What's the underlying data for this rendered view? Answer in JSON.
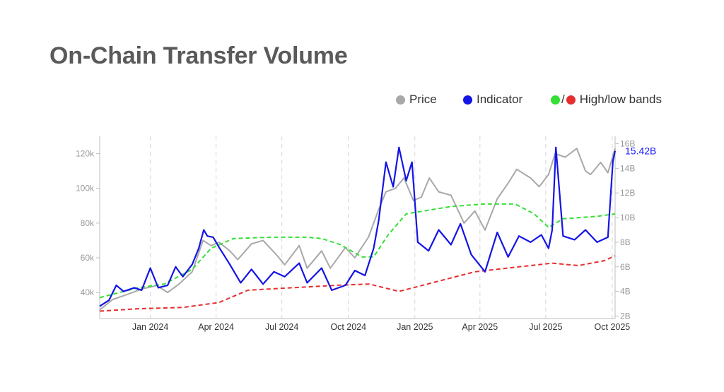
{
  "page": {
    "title": "On-Chain Transfer Volume"
  },
  "legend": {
    "price_label": "Price",
    "indicator_label": "Indicator",
    "bands_label": "High/low bands",
    "bands_slash": "/"
  },
  "colors": {
    "price": "#a8a8a8",
    "indicator": "#1414e6",
    "high_band": "#33e033",
    "low_band": "#e62e2e",
    "grid": "#d6d6d6",
    "axis": "#bdbdbd"
  },
  "chart_data": {
    "type": "line",
    "title": "On-Chain Transfer Volume",
    "x_range": [
      "2023-10-23",
      "2025-10-05"
    ],
    "x_ticks": [
      {
        "date": "2024-01-01",
        "label": "Jan 2024"
      },
      {
        "date": "2024-04-01",
        "label": "Apr 2024"
      },
      {
        "date": "2024-07-01",
        "label": "Jul 2024"
      },
      {
        "date": "2024-10-01",
        "label": "Oct 2024"
      },
      {
        "date": "2025-01-01",
        "label": "Jan 2025"
      },
      {
        "date": "2025-04-01",
        "label": "Apr 2025"
      },
      {
        "date": "2025-07-01",
        "label": "Jul 2025"
      },
      {
        "date": "2025-10-01",
        "label": "Oct 2025"
      }
    ],
    "y_left": {
      "range": [
        25000,
        130000
      ],
      "ticks": [
        40000,
        60000,
        80000,
        100000,
        120000
      ],
      "tick_labels": [
        "40k",
        "60k",
        "80k",
        "100k",
        "120k"
      ]
    },
    "y_right": {
      "range": [
        1.8,
        16.6
      ],
      "ticks": [
        2,
        4,
        6,
        8,
        10,
        12,
        14,
        16
      ],
      "tick_labels": [
        "2B",
        "4B",
        "6B",
        "8B",
        "10B",
        "12B",
        "14B",
        "16B"
      ]
    },
    "grid": "vertical dashed at x ticks",
    "legend_position": "top-right",
    "last_value_label": "15.42B",
    "series": [
      {
        "name": "Price",
        "axis": "left",
        "points": [
          [
            "2023-10-23",
            30000
          ],
          [
            "2023-11-10",
            36000
          ],
          [
            "2023-12-01",
            39000
          ],
          [
            "2023-12-20",
            42000
          ],
          [
            "2024-01-10",
            44000
          ],
          [
            "2024-01-25",
            40000
          ],
          [
            "2024-02-10",
            45000
          ],
          [
            "2024-02-28",
            52000
          ],
          [
            "2024-03-14",
            70000
          ],
          [
            "2024-03-25",
            67000
          ],
          [
            "2024-04-05",
            69000
          ],
          [
            "2024-04-20",
            64000
          ],
          [
            "2024-05-01",
            59000
          ],
          [
            "2024-05-20",
            68000
          ],
          [
            "2024-06-05",
            70000
          ],
          [
            "2024-06-25",
            61000
          ],
          [
            "2024-07-05",
            56000
          ],
          [
            "2024-07-25",
            67000
          ],
          [
            "2024-08-05",
            54000
          ],
          [
            "2024-08-25",
            64000
          ],
          [
            "2024-09-06",
            54000
          ],
          [
            "2024-09-27",
            66000
          ],
          [
            "2024-10-10",
            60000
          ],
          [
            "2024-10-29",
            72000
          ],
          [
            "2024-11-12",
            88000
          ],
          [
            "2024-11-22",
            98000
          ],
          [
            "2024-12-05",
            100000
          ],
          [
            "2024-12-17",
            106000
          ],
          [
            "2024-12-30",
            93000
          ],
          [
            "2025-01-10",
            95000
          ],
          [
            "2025-01-21",
            106000
          ],
          [
            "2025-02-03",
            98000
          ],
          [
            "2025-02-20",
            96000
          ],
          [
            "2025-03-10",
            80000
          ],
          [
            "2025-03-25",
            87000
          ],
          [
            "2025-04-08",
            76000
          ],
          [
            "2025-04-25",
            94000
          ],
          [
            "2025-05-10",
            103000
          ],
          [
            "2025-05-22",
            111000
          ],
          [
            "2025-06-10",
            106000
          ],
          [
            "2025-06-22",
            101000
          ],
          [
            "2025-07-05",
            108000
          ],
          [
            "2025-07-14",
            120000
          ],
          [
            "2025-07-28",
            118000
          ],
          [
            "2025-08-13",
            123000
          ],
          [
            "2025-08-25",
            110000
          ],
          [
            "2025-09-01",
            108000
          ],
          [
            "2025-09-15",
            115000
          ],
          [
            "2025-09-25",
            109000
          ],
          [
            "2025-10-05",
            123000
          ]
        ]
      },
      {
        "name": "Indicator",
        "axis": "right",
        "points": [
          [
            "2023-10-23",
            2.8
          ],
          [
            "2023-11-05",
            3.3
          ],
          [
            "2023-11-15",
            4.5
          ],
          [
            "2023-11-25",
            4.0
          ],
          [
            "2023-12-10",
            4.3
          ],
          [
            "2023-12-20",
            4.1
          ],
          [
            "2024-01-01",
            5.9
          ],
          [
            "2024-01-12",
            4.3
          ],
          [
            "2024-01-25",
            4.5
          ],
          [
            "2024-02-05",
            6.0
          ],
          [
            "2024-02-15",
            5.2
          ],
          [
            "2024-02-28",
            6.2
          ],
          [
            "2024-03-08",
            7.5
          ],
          [
            "2024-03-15",
            9.0
          ],
          [
            "2024-03-20",
            8.5
          ],
          [
            "2024-03-28",
            8.4
          ],
          [
            "2024-04-06",
            7.5
          ],
          [
            "2024-04-20",
            6.2
          ],
          [
            "2024-05-05",
            4.7
          ],
          [
            "2024-05-20",
            5.8
          ],
          [
            "2024-06-05",
            4.6
          ],
          [
            "2024-06-20",
            5.6
          ],
          [
            "2024-07-05",
            5.2
          ],
          [
            "2024-07-25",
            6.3
          ],
          [
            "2024-08-05",
            4.7
          ],
          [
            "2024-08-25",
            5.9
          ],
          [
            "2024-09-08",
            4.1
          ],
          [
            "2024-09-27",
            4.5
          ],
          [
            "2024-10-10",
            5.7
          ],
          [
            "2024-10-24",
            5.3
          ],
          [
            "2024-11-05",
            7.5
          ],
          [
            "2024-11-12",
            9.8
          ],
          [
            "2024-11-22",
            14.5
          ],
          [
            "2024-12-02",
            12.5
          ],
          [
            "2024-12-10",
            15.7
          ],
          [
            "2024-12-20",
            13.0
          ],
          [
            "2024-12-28",
            14.5
          ],
          [
            "2025-01-05",
            8.0
          ],
          [
            "2025-01-20",
            7.3
          ],
          [
            "2025-02-03",
            9.0
          ],
          [
            "2025-02-20",
            7.8
          ],
          [
            "2025-03-05",
            9.5
          ],
          [
            "2025-03-20",
            7.0
          ],
          [
            "2025-04-08",
            5.6
          ],
          [
            "2025-04-25",
            8.8
          ],
          [
            "2025-05-10",
            6.8
          ],
          [
            "2025-05-25",
            8.5
          ],
          [
            "2025-06-10",
            8.0
          ],
          [
            "2025-06-25",
            8.6
          ],
          [
            "2025-07-05",
            7.5
          ],
          [
            "2025-07-10",
            9.0
          ],
          [
            "2025-07-15",
            15.7
          ],
          [
            "2025-07-25",
            8.5
          ],
          [
            "2025-08-10",
            8.2
          ],
          [
            "2025-08-25",
            9.0
          ],
          [
            "2025-09-10",
            8.0
          ],
          [
            "2025-09-25",
            8.4
          ],
          [
            "2025-10-02",
            14.6
          ],
          [
            "2025-10-05",
            15.42
          ]
        ]
      },
      {
        "name": "High band",
        "axis": "right",
        "style": "dashed",
        "points": [
          [
            "2023-10-23",
            3.5
          ],
          [
            "2023-12-15",
            4.3
          ],
          [
            "2024-01-20",
            4.6
          ],
          [
            "2024-02-28",
            5.8
          ],
          [
            "2024-03-25",
            7.5
          ],
          [
            "2024-04-25",
            8.3
          ],
          [
            "2024-06-15",
            8.4
          ],
          [
            "2024-08-05",
            8.4
          ],
          [
            "2024-08-25",
            8.3
          ],
          [
            "2024-09-20",
            7.8
          ],
          [
            "2024-10-20",
            6.8
          ],
          [
            "2024-11-05",
            6.8
          ],
          [
            "2024-11-25",
            8.6
          ],
          [
            "2024-12-20",
            10.3
          ],
          [
            "2025-01-20",
            10.6
          ],
          [
            "2025-02-20",
            10.9
          ],
          [
            "2025-04-05",
            11.1
          ],
          [
            "2025-05-20",
            11.1
          ],
          [
            "2025-06-15",
            10.3
          ],
          [
            "2025-07-05",
            9.2
          ],
          [
            "2025-07-25",
            9.9
          ],
          [
            "2025-09-10",
            10.1
          ],
          [
            "2025-10-05",
            10.3
          ]
        ]
      },
      {
        "name": "Low band",
        "axis": "right",
        "style": "dashed",
        "points": [
          [
            "2023-10-23",
            2.4
          ],
          [
            "2023-12-15",
            2.6
          ],
          [
            "2024-02-15",
            2.7
          ],
          [
            "2024-04-05",
            3.1
          ],
          [
            "2024-05-15",
            4.1
          ],
          [
            "2024-07-15",
            4.3
          ],
          [
            "2024-09-15",
            4.5
          ],
          [
            "2024-10-30",
            4.6
          ],
          [
            "2024-12-10",
            4.0
          ],
          [
            "2025-01-25",
            4.7
          ],
          [
            "2025-03-25",
            5.6
          ],
          [
            "2025-05-25",
            6.0
          ],
          [
            "2025-07-10",
            6.3
          ],
          [
            "2025-08-15",
            6.1
          ],
          [
            "2025-09-20",
            6.5
          ],
          [
            "2025-10-05",
            6.9
          ]
        ]
      }
    ]
  }
}
